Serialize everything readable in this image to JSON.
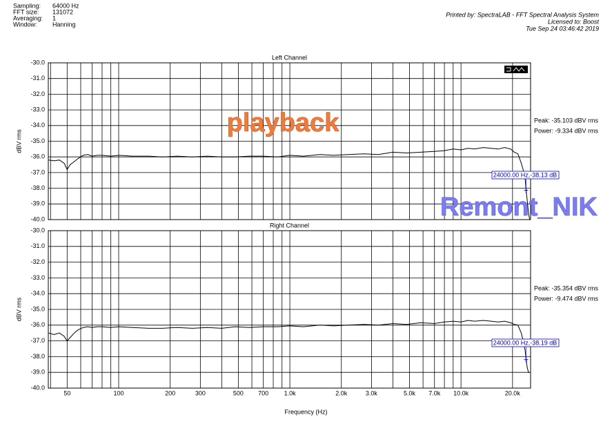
{
  "header": {
    "left": [
      [
        "Sampling:",
        "64000 Hz"
      ],
      [
        "FFT size:",
        "131072"
      ],
      [
        "Averaging:",
        "1"
      ],
      [
        "Window:",
        "Hanning"
      ]
    ],
    "right": [
      "Printed by: SpectraLAB - FFT Spectral Analysis System",
      "Licensed to: Boost",
      "Tue Sep 24 03:46:42 2019"
    ]
  },
  "watermarks": [
    "playback",
    "Remont_NIK"
  ],
  "x_axis": {
    "label": "Frequency (Hz)",
    "log": true,
    "xlim": [
      38.8,
      25500
    ],
    "xticks": [
      50,
      100,
      200,
      300,
      500,
      700,
      {
        "value": 1000,
        "label": "1.0k"
      },
      {
        "value": 2000,
        "label": "2.0k"
      },
      {
        "value": 3000,
        "label": "3.0k"
      },
      {
        "value": 5000,
        "label": "5.0k"
      },
      {
        "value": 7000,
        "label": "7.0k"
      },
      {
        "value": 10000,
        "label": "10.0k"
      },
      {
        "value": 20000,
        "label": "20.0k"
      }
    ],
    "xminor": [
      40,
      60,
      70,
      80,
      90,
      400,
      600,
      800,
      900,
      4000,
      6000,
      8000,
      9000
    ]
  },
  "chart_data": [
    {
      "type": "line",
      "title": "Left Channel",
      "ylabel": "dBV rms",
      "ylim": [
        -40,
        -30
      ],
      "yticks": [
        {
          "value": -30,
          "label": "-30.0"
        },
        {
          "value": -31,
          "label": "-31.0"
        },
        {
          "value": -32,
          "label": "-32.0"
        },
        {
          "value": -33,
          "label": "-33.0"
        },
        {
          "value": -34,
          "label": "-34.0"
        },
        {
          "value": -35,
          "label": "-35.0"
        },
        {
          "value": -36,
          "label": "-36.0"
        },
        {
          "value": -37,
          "label": "-37.0"
        },
        {
          "value": -38,
          "label": "-38.0"
        },
        {
          "value": -39,
          "label": "-39.0"
        },
        {
          "value": -40,
          "label": "-40.0"
        }
      ],
      "grid": true,
      "x": [
        39,
        42,
        45,
        48,
        50,
        52,
        55,
        58,
        62,
        66,
        70,
        75,
        80,
        90,
        100,
        120,
        150,
        180,
        220,
        270,
        330,
        400,
        480,
        580,
        700,
        850,
        1000,
        1200,
        1500,
        1800,
        2200,
        2700,
        3300,
        4000,
        4800,
        5800,
        7000,
        8000,
        9000,
        10000,
        11000,
        12000,
        13500,
        15000,
        16500,
        18000,
        19500,
        20500,
        21500,
        22500,
        23200,
        23700,
        24000,
        24400,
        24800,
        25200
      ],
      "series": [
        {
          "color": "#000000",
          "values": [
            -36.2,
            -36.25,
            -36.2,
            -36.4,
            -36.8,
            -36.5,
            -36.3,
            -36.1,
            -35.9,
            -35.85,
            -35.95,
            -35.9,
            -35.9,
            -35.95,
            -35.9,
            -35.95,
            -35.95,
            -36.0,
            -35.95,
            -36.0,
            -35.95,
            -36.0,
            -36.0,
            -35.95,
            -35.95,
            -36.0,
            -35.9,
            -35.95,
            -35.85,
            -35.9,
            -35.85,
            -35.8,
            -35.85,
            -35.7,
            -35.75,
            -35.7,
            -35.65,
            -35.6,
            -35.5,
            -35.55,
            -35.45,
            -35.5,
            -35.4,
            -35.45,
            -35.5,
            -35.4,
            -35.5,
            -35.7,
            -35.8,
            -36.4,
            -36.9,
            -37.4,
            -38.13,
            -38.8,
            -39.6,
            -40.0
          ]
        }
      ],
      "annotations": [
        "Peak: -35.103 dBV rms",
        "Power: -9.334 dBV rms"
      ],
      "cursor": {
        "x": 24000,
        "y": -38.13,
        "label": "24000.00 Hz,-38.13 dB",
        "color": "#0000c0"
      }
    },
    {
      "type": "line",
      "title": "Right Channel",
      "ylabel": "dBV rms",
      "ylim": [
        -40,
        -30
      ],
      "yticks": [
        {
          "value": -30,
          "label": "-30.0"
        },
        {
          "value": -31,
          "label": "-31.0"
        },
        {
          "value": -32,
          "label": "-32.0"
        },
        {
          "value": -33,
          "label": "-33.0"
        },
        {
          "value": -34,
          "label": "-34.0"
        },
        {
          "value": -35,
          "label": "-35.0"
        },
        {
          "value": -36,
          "label": "-36.0"
        },
        {
          "value": -37,
          "label": "-37.0"
        },
        {
          "value": -38,
          "label": "-38.0"
        },
        {
          "value": -39,
          "label": "-39.0"
        },
        {
          "value": -40,
          "label": "-40.0"
        }
      ],
      "grid": true,
      "x": [
        39,
        42,
        45,
        48,
        50,
        52,
        55,
        58,
        62,
        66,
        70,
        75,
        80,
        90,
        100,
        120,
        150,
        180,
        220,
        270,
        330,
        400,
        480,
        580,
        700,
        850,
        1000,
        1200,
        1500,
        1800,
        2200,
        2700,
        3300,
        4000,
        4800,
        5800,
        7000,
        8000,
        9000,
        10000,
        11000,
        12000,
        13500,
        15000,
        16500,
        18000,
        19500,
        20500,
        21500,
        22500,
        23200,
        23700,
        24000,
        24400,
        24800,
        25200
      ],
      "series": [
        {
          "color": "#000000",
          "values": [
            -36.5,
            -36.6,
            -36.5,
            -36.7,
            -37.0,
            -36.8,
            -36.5,
            -36.3,
            -36.15,
            -36.1,
            -36.15,
            -36.1,
            -36.1,
            -36.15,
            -36.1,
            -36.15,
            -36.2,
            -36.2,
            -36.15,
            -36.2,
            -36.15,
            -36.2,
            -36.1,
            -36.15,
            -36.1,
            -36.1,
            -36.05,
            -36.1,
            -36.0,
            -36.05,
            -36.0,
            -35.95,
            -36.0,
            -35.9,
            -35.95,
            -35.85,
            -35.9,
            -35.8,
            -35.75,
            -35.8,
            -35.7,
            -35.75,
            -35.7,
            -35.75,
            -35.8,
            -35.75,
            -35.85,
            -35.95,
            -36.0,
            -36.5,
            -37.1,
            -37.6,
            -38.19,
            -38.7,
            -39.0,
            -39.0
          ]
        }
      ],
      "annotations": [
        "Peak: -35.354 dBV rms",
        "Power: -9.474 dBV rms"
      ],
      "cursor": {
        "x": 24000,
        "y": -38.19,
        "label": "24000.00 Hz,-38.19 dB",
        "color": "#0000c0"
      }
    }
  ]
}
